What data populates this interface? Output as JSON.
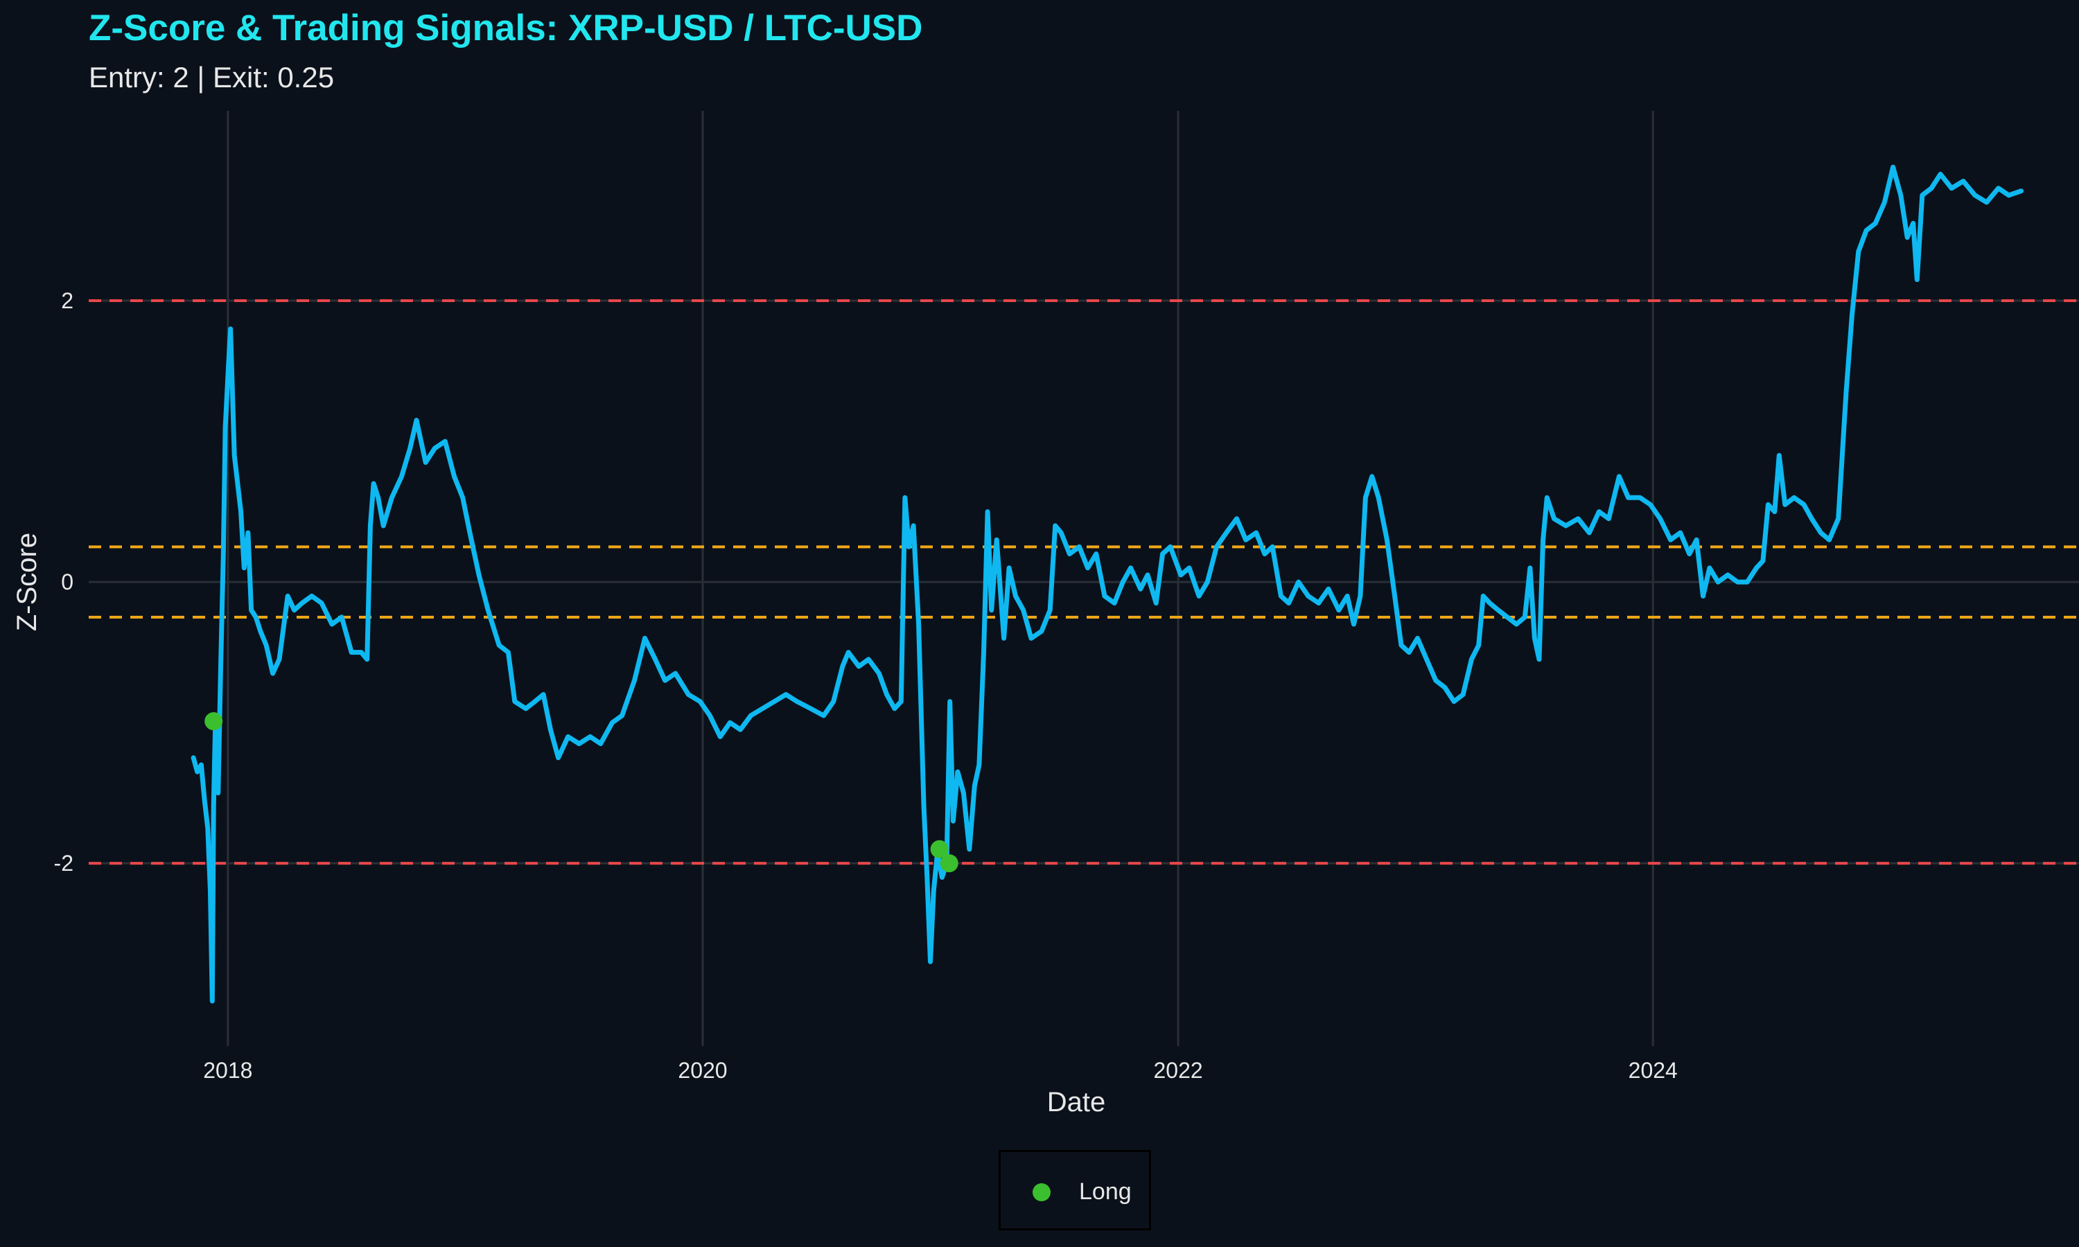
{
  "chart_data": {
    "type": "line",
    "title": "Z-Score & Trading Signals: XRP-USD / LTC-USD",
    "subtitle": "Entry: 2 | Exit: 0.25",
    "xlabel": "Date",
    "ylabel": "Z-Score",
    "x_ticks": [
      "2018",
      "2020",
      "2022",
      "2024"
    ],
    "y_ticks": [
      2,
      0,
      -2
    ],
    "y_tick_labels": [
      "2",
      "0",
      "-2"
    ],
    "xlim": [
      "2017-06-01",
      "2025-10-01"
    ],
    "ylim": [
      -3.3,
      3.35
    ],
    "grid": true,
    "legend_position": "bottom",
    "reference_lines": [
      {
        "value": 2,
        "color": "#e8474b",
        "style": "dashed"
      },
      {
        "value": -2,
        "color": "#e8474b",
        "style": "dashed"
      },
      {
        "value": 0.25,
        "color": "#f0a818",
        "style": "dashed"
      },
      {
        "value": -0.25,
        "color": "#f0a818",
        "style": "dashed"
      }
    ],
    "series": [
      {
        "color": "#0fb8f0",
        "points": [
          [
            "2017-11-09",
            -1.25
          ],
          [
            "2017-11-15",
            -1.35
          ],
          [
            "2017-11-21",
            -1.3
          ],
          [
            "2017-11-26",
            -1.55
          ],
          [
            "2017-12-01",
            -1.75
          ],
          [
            "2017-12-05",
            -2.2
          ],
          [
            "2017-12-08",
            -2.98
          ],
          [
            "2017-12-10",
            -1.6
          ],
          [
            "2017-12-13",
            -0.95
          ],
          [
            "2017-12-17",
            -1.5
          ],
          [
            "2017-12-21",
            -0.6
          ],
          [
            "2017-12-25",
            0.2
          ],
          [
            "2017-12-28",
            1.1
          ],
          [
            "2018-01-02",
            1.55
          ],
          [
            "2018-01-05",
            1.8
          ],
          [
            "2018-01-08",
            1.35
          ],
          [
            "2018-01-11",
            0.9
          ],
          [
            "2018-01-16",
            0.7
          ],
          [
            "2018-01-21",
            0.5
          ],
          [
            "2018-01-26",
            0.1
          ],
          [
            "2018-02-01",
            0.35
          ],
          [
            "2018-02-06",
            -0.2
          ],
          [
            "2018-02-13",
            -0.25
          ],
          [
            "2018-02-20",
            -0.35
          ],
          [
            "2018-03-01",
            -0.45
          ],
          [
            "2018-03-11",
            -0.65
          ],
          [
            "2018-03-21",
            -0.55
          ],
          [
            "2018-04-03",
            -0.1
          ],
          [
            "2018-04-13",
            -0.2
          ],
          [
            "2018-04-25",
            -0.15
          ],
          [
            "2018-05-10",
            -0.1
          ],
          [
            "2018-05-25",
            -0.15
          ],
          [
            "2018-06-10",
            -0.3
          ],
          [
            "2018-06-25",
            -0.25
          ],
          [
            "2018-07-10",
            -0.5
          ],
          [
            "2018-07-25",
            -0.5
          ],
          [
            "2018-08-03",
            -0.55
          ],
          [
            "2018-08-08",
            0.4
          ],
          [
            "2018-08-13",
            0.7
          ],
          [
            "2018-08-20",
            0.6
          ],
          [
            "2018-08-28",
            0.4
          ],
          [
            "2018-09-10",
            0.6
          ],
          [
            "2018-09-25",
            0.75
          ],
          [
            "2018-10-08",
            0.95
          ],
          [
            "2018-10-18",
            1.15
          ],
          [
            "2018-11-01",
            0.85
          ],
          [
            "2018-11-15",
            0.95
          ],
          [
            "2018-12-01",
            1.0
          ],
          [
            "2018-12-15",
            0.75
          ],
          [
            "2018-12-28",
            0.6
          ],
          [
            "2019-01-08",
            0.35
          ],
          [
            "2019-01-22",
            0.05
          ],
          [
            "2019-02-05",
            -0.2
          ],
          [
            "2019-02-22",
            -0.45
          ],
          [
            "2019-03-08",
            -0.5
          ],
          [
            "2019-03-18",
            -0.85
          ],
          [
            "2019-04-04",
            -0.9
          ],
          [
            "2019-04-18",
            -0.85
          ],
          [
            "2019-05-01",
            -0.8
          ],
          [
            "2019-05-12",
            -1.05
          ],
          [
            "2019-05-24",
            -1.25
          ],
          [
            "2019-06-08",
            -1.1
          ],
          [
            "2019-06-25",
            -1.15
          ],
          [
            "2019-07-12",
            -1.1
          ],
          [
            "2019-07-28",
            -1.15
          ],
          [
            "2019-08-15",
            -1.0
          ],
          [
            "2019-08-30",
            -0.95
          ],
          [
            "2019-09-18",
            -0.7
          ],
          [
            "2019-10-04",
            -0.4
          ],
          [
            "2019-10-20",
            -0.55
          ],
          [
            "2019-11-04",
            -0.7
          ],
          [
            "2019-11-20",
            -0.65
          ],
          [
            "2019-12-10",
            -0.8
          ],
          [
            "2019-12-28",
            -0.85
          ],
          [
            "2020-01-12",
            -0.95
          ],
          [
            "2020-01-28",
            -1.1
          ],
          [
            "2020-02-12",
            -1.0
          ],
          [
            "2020-02-28",
            -1.05
          ],
          [
            "2020-03-15",
            -0.95
          ],
          [
            "2020-04-02",
            -0.9
          ],
          [
            "2020-04-20",
            -0.85
          ],
          [
            "2020-05-08",
            -0.8
          ],
          [
            "2020-05-25",
            -0.85
          ],
          [
            "2020-06-15",
            -0.9
          ],
          [
            "2020-07-05",
            -0.95
          ],
          [
            "2020-07-20",
            -0.85
          ],
          [
            "2020-08-03",
            -0.6
          ],
          [
            "2020-08-12",
            -0.5
          ],
          [
            "2020-08-28",
            -0.6
          ],
          [
            "2020-09-12",
            -0.55
          ],
          [
            "2020-09-28",
            -0.65
          ],
          [
            "2020-10-10",
            -0.8
          ],
          [
            "2020-10-22",
            -0.9
          ],
          [
            "2020-11-01",
            -0.85
          ],
          [
            "2020-11-07",
            0.6
          ],
          [
            "2020-11-13",
            0.25
          ],
          [
            "2020-11-20",
            0.4
          ],
          [
            "2020-11-28",
            -0.3
          ],
          [
            "2020-12-06",
            -1.6
          ],
          [
            "2020-12-11",
            -2.1
          ],
          [
            "2020-12-16",
            -2.7
          ],
          [
            "2020-12-21",
            -2.2
          ],
          [
            "2020-12-27",
            -1.92
          ],
          [
            "2021-01-03",
            -2.1
          ],
          [
            "2021-01-10",
            -2.0
          ],
          [
            "2021-01-15",
            -0.85
          ],
          [
            "2021-01-20",
            -1.7
          ],
          [
            "2021-01-27",
            -1.35
          ],
          [
            "2021-02-05",
            -1.5
          ],
          [
            "2021-02-14",
            -1.9
          ],
          [
            "2021-02-22",
            -1.45
          ],
          [
            "2021-03-01",
            -1.3
          ],
          [
            "2021-03-08",
            -0.5
          ],
          [
            "2021-03-14",
            0.5
          ],
          [
            "2021-03-20",
            -0.2
          ],
          [
            "2021-03-28",
            0.3
          ],
          [
            "2021-04-08",
            -0.4
          ],
          [
            "2021-04-16",
            0.1
          ],
          [
            "2021-04-26",
            -0.1
          ],
          [
            "2021-05-08",
            -0.2
          ],
          [
            "2021-05-20",
            -0.4
          ],
          [
            "2021-06-05",
            -0.35
          ],
          [
            "2021-06-18",
            -0.2
          ],
          [
            "2021-06-26",
            0.4
          ],
          [
            "2021-07-05",
            0.35
          ],
          [
            "2021-07-18",
            0.2
          ],
          [
            "2021-08-02",
            0.25
          ],
          [
            "2021-08-15",
            0.1
          ],
          [
            "2021-08-28",
            0.2
          ],
          [
            "2021-09-10",
            -0.1
          ],
          [
            "2021-09-25",
            -0.15
          ],
          [
            "2021-10-08",
            0.0
          ],
          [
            "2021-10-20",
            0.1
          ],
          [
            "2021-11-04",
            -0.05
          ],
          [
            "2021-11-15",
            0.05
          ],
          [
            "2021-11-28",
            -0.15
          ],
          [
            "2021-12-08",
            0.2
          ],
          [
            "2021-12-20",
            0.25
          ],
          [
            "2022-01-05",
            0.05
          ],
          [
            "2022-01-18",
            0.1
          ],
          [
            "2022-02-02",
            -0.1
          ],
          [
            "2022-02-15",
            0.0
          ],
          [
            "2022-03-01",
            0.25
          ],
          [
            "2022-03-16",
            0.35
          ],
          [
            "2022-04-01",
            0.45
          ],
          [
            "2022-04-15",
            0.3
          ],
          [
            "2022-05-01",
            0.35
          ],
          [
            "2022-05-14",
            0.2
          ],
          [
            "2022-05-26",
            0.25
          ],
          [
            "2022-06-08",
            -0.1
          ],
          [
            "2022-06-20",
            -0.15
          ],
          [
            "2022-07-05",
            0.0
          ],
          [
            "2022-07-20",
            -0.1
          ],
          [
            "2022-08-05",
            -0.15
          ],
          [
            "2022-08-20",
            -0.05
          ],
          [
            "2022-09-05",
            -0.2
          ],
          [
            "2022-09-18",
            -0.1
          ],
          [
            "2022-09-28",
            -0.3
          ],
          [
            "2022-10-08",
            -0.1
          ],
          [
            "2022-10-16",
            0.6
          ],
          [
            "2022-10-26",
            0.75
          ],
          [
            "2022-11-05",
            0.6
          ],
          [
            "2022-11-18",
            0.3
          ],
          [
            "2022-11-30",
            -0.1
          ],
          [
            "2022-12-10",
            -0.45
          ],
          [
            "2022-12-22",
            -0.5
          ],
          [
            "2023-01-04",
            -0.4
          ],
          [
            "2023-01-18",
            -0.55
          ],
          [
            "2023-02-01",
            -0.7
          ],
          [
            "2023-02-15",
            -0.75
          ],
          [
            "2023-03-01",
            -0.85
          ],
          [
            "2023-03-15",
            -0.8
          ],
          [
            "2023-03-28",
            -0.55
          ],
          [
            "2023-04-08",
            -0.45
          ],
          [
            "2023-04-15",
            -0.1
          ],
          [
            "2023-04-25",
            -0.15
          ],
          [
            "2023-05-08",
            -0.2
          ],
          [
            "2023-05-22",
            -0.25
          ],
          [
            "2023-06-05",
            -0.3
          ],
          [
            "2023-06-18",
            -0.25
          ],
          [
            "2023-06-26",
            0.1
          ],
          [
            "2023-07-03",
            -0.4
          ],
          [
            "2023-07-10",
            -0.55
          ],
          [
            "2023-07-16",
            0.3
          ],
          [
            "2023-07-22",
            0.6
          ],
          [
            "2023-08-02",
            0.45
          ],
          [
            "2023-08-20",
            0.4
          ],
          [
            "2023-09-08",
            0.45
          ],
          [
            "2023-09-25",
            0.35
          ],
          [
            "2023-10-10",
            0.5
          ],
          [
            "2023-10-25",
            0.45
          ],
          [
            "2023-11-10",
            0.75
          ],
          [
            "2023-11-24",
            0.6
          ],
          [
            "2023-12-12",
            0.6
          ],
          [
            "2023-12-28",
            0.55
          ],
          [
            "2024-01-12",
            0.45
          ],
          [
            "2024-01-28",
            0.3
          ],
          [
            "2024-02-12",
            0.35
          ],
          [
            "2024-02-26",
            0.2
          ],
          [
            "2024-03-08",
            0.3
          ],
          [
            "2024-03-18",
            -0.1
          ],
          [
            "2024-03-28",
            0.1
          ],
          [
            "2024-04-10",
            0.0
          ],
          [
            "2024-04-25",
            0.05
          ],
          [
            "2024-05-10",
            0.0
          ],
          [
            "2024-05-25",
            0.0
          ],
          [
            "2024-06-08",
            0.1
          ],
          [
            "2024-06-18",
            0.15
          ],
          [
            "2024-06-26",
            0.55
          ],
          [
            "2024-07-06",
            0.5
          ],
          [
            "2024-07-13",
            0.9
          ],
          [
            "2024-07-22",
            0.55
          ],
          [
            "2024-08-05",
            0.6
          ],
          [
            "2024-08-20",
            0.55
          ],
          [
            "2024-09-01",
            0.45
          ],
          [
            "2024-09-15",
            0.35
          ],
          [
            "2024-09-28",
            0.3
          ],
          [
            "2024-10-12",
            0.45
          ],
          [
            "2024-10-24",
            1.35
          ],
          [
            "2024-11-02",
            1.9
          ],
          [
            "2024-11-12",
            2.35
          ],
          [
            "2024-11-24",
            2.5
          ],
          [
            "2024-12-08",
            2.55
          ],
          [
            "2024-12-22",
            2.7
          ],
          [
            "2025-01-04",
            2.95
          ],
          [
            "2025-01-16",
            2.75
          ],
          [
            "2025-01-26",
            2.45
          ],
          [
            "2025-02-04",
            2.55
          ],
          [
            "2025-02-10",
            2.15
          ],
          [
            "2025-02-18",
            2.75
          ],
          [
            "2025-03-04",
            2.8
          ],
          [
            "2025-03-18",
            2.9
          ],
          [
            "2025-04-04",
            2.8
          ],
          [
            "2025-04-22",
            2.85
          ],
          [
            "2025-05-10",
            2.75
          ],
          [
            "2025-05-28",
            2.7
          ],
          [
            "2025-06-15",
            2.8
          ],
          [
            "2025-07-01",
            2.75
          ],
          [
            "2025-07-20",
            2.78
          ]
        ]
      }
    ],
    "signals": {
      "name": "Long",
      "color": "#3cbf2f",
      "points": [
        [
          "2017-12-10",
          -0.99
        ],
        [
          "2020-12-30",
          -1.9
        ],
        [
          "2021-01-14",
          -2.0
        ]
      ]
    }
  }
}
